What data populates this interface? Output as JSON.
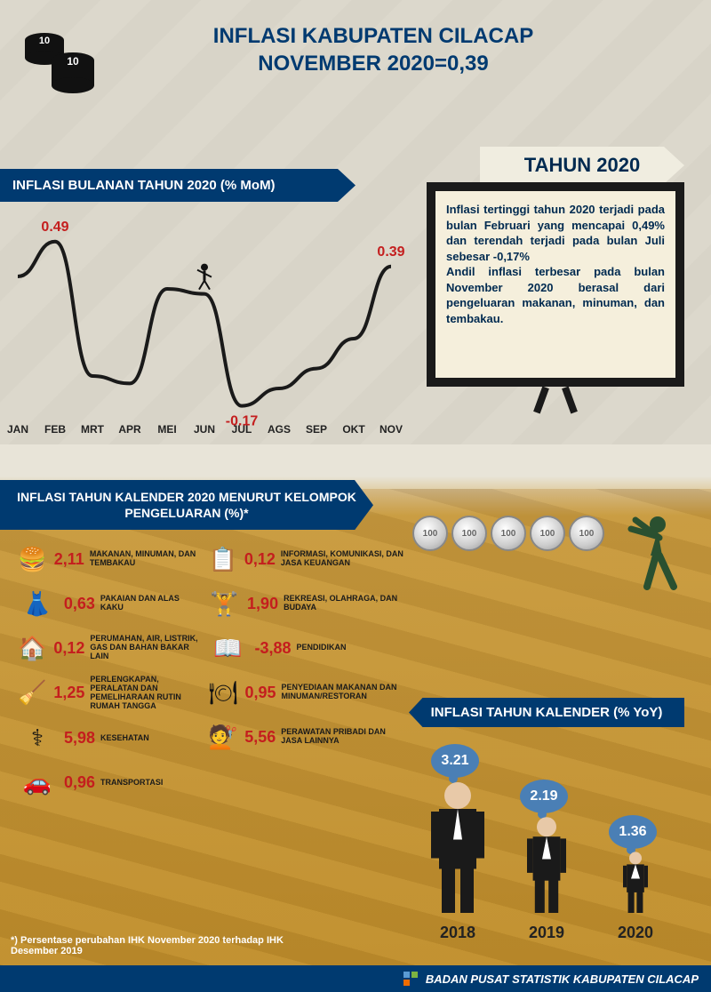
{
  "title_line1": "INFLASI KABUPATEN CILACAP",
  "title_line2": "NOVEMBER 2020=0,39",
  "year_tag": "TAHUN 2020",
  "colors": {
    "navy": "#003a70",
    "red": "#c41e1e",
    "bubble": "#4a7fb5",
    "board_bg": "#f5efdc",
    "board_frame": "#1a1a1a"
  },
  "monthly": {
    "label": "INFLASI BULANAN TAHUN 2020 (% MoM)",
    "months": [
      "JAN",
      "FEB",
      "MRT",
      "APR",
      "MEI",
      "JUN",
      "JUL",
      "AGS",
      "SEP",
      "OKT",
      "NOV"
    ],
    "values": [
      0.35,
      0.49,
      -0.05,
      -0.08,
      0.3,
      0.28,
      -0.17,
      -0.1,
      -0.02,
      0.1,
      0.39
    ],
    "callouts": [
      {
        "month": "FEB",
        "value": "0.49",
        "color": "#c41e1e"
      },
      {
        "month": "JUL",
        "value": "-0.17",
        "color": "#c41e1e",
        "pos": "bottom"
      },
      {
        "month": "NOV",
        "value": "0.39",
        "color": "#c41e1e"
      }
    ],
    "line_color": "#1a1a1a",
    "axis_fontsize": 12,
    "y_range": [
      -0.2,
      0.55
    ]
  },
  "board_text": "Inflasi tertinggi tahun 2020 terjadi pada bulan Februari yang mencapai 0,49% dan terendah terjadi pada bulan Juli sebesar -0,17%\nAndil inflasi terbesar pada bulan November 2020 berasal dari pengeluaran makanan, minuman, dan tembakau.",
  "group_label": "INFLASI TAHUN KALENDER 2020 MENURUT KELOMPOK PENGELUARAN (%)*",
  "groups_left": [
    {
      "icon": "🍔",
      "value": "2,11",
      "name": "MAKANAN, MINUMAN, DAN TEMBAKAU"
    },
    {
      "icon": "👗",
      "value": "0,63",
      "name": "PAKAIAN DAN ALAS KAKU"
    },
    {
      "icon": "🏠",
      "value": "0,12",
      "name": "PERUMAHAN, AIR, LISTRIK, GAS DAN BAHAN BAKAR LAIN"
    },
    {
      "icon": "🧹",
      "value": "1,25",
      "name": "PERLENGKAPAN, PERALATAN DAN PEMELIHARAAN RUTIN RUMAH TANGGA"
    },
    {
      "icon": "⚕",
      "value": "5,98",
      "name": "KESEHATAN"
    },
    {
      "icon": "🚗",
      "value": "0,96",
      "name": "TRANSPORTASI"
    }
  ],
  "groups_right": [
    {
      "icon": "📋",
      "value": "0,12",
      "name": "INFORMASI, KOMUNIKASI, DAN JASA KEUANGAN"
    },
    {
      "icon": "🏋",
      "value": "1,90",
      "name": "REKREASI, OLAHRAGA, DAN BUDAYA"
    },
    {
      "icon": "📖",
      "value": "-3,88",
      "name": "PENDIDIKAN"
    },
    {
      "icon": "🍽",
      "value": "0,95",
      "name": "PENYEDIAAN MAKANAN DAN MINUMAN/RESTORAN"
    },
    {
      "icon": "💇",
      "value": "5,56",
      "name": "PERAWATAN PRIBADI DAN JASA LAINNYA"
    }
  ],
  "coin_label": "100",
  "yoy": {
    "label": "INFLASI  TAHUN KALENDER (% YoY)",
    "items": [
      {
        "year": "2018",
        "value": "3.21",
        "height": 150
      },
      {
        "year": "2019",
        "value": "2.19",
        "height": 110
      },
      {
        "year": "2020",
        "value": "1.36",
        "height": 70
      }
    ],
    "bubble_color": "#4a7fb5",
    "year_fontsize": 18
  },
  "footnote": "*) Persentase perubahan IHK November 2020 terhadap IHK Desember 2019",
  "footer": "BADAN PUSAT STATISTIK KABUPATEN CILACAP"
}
